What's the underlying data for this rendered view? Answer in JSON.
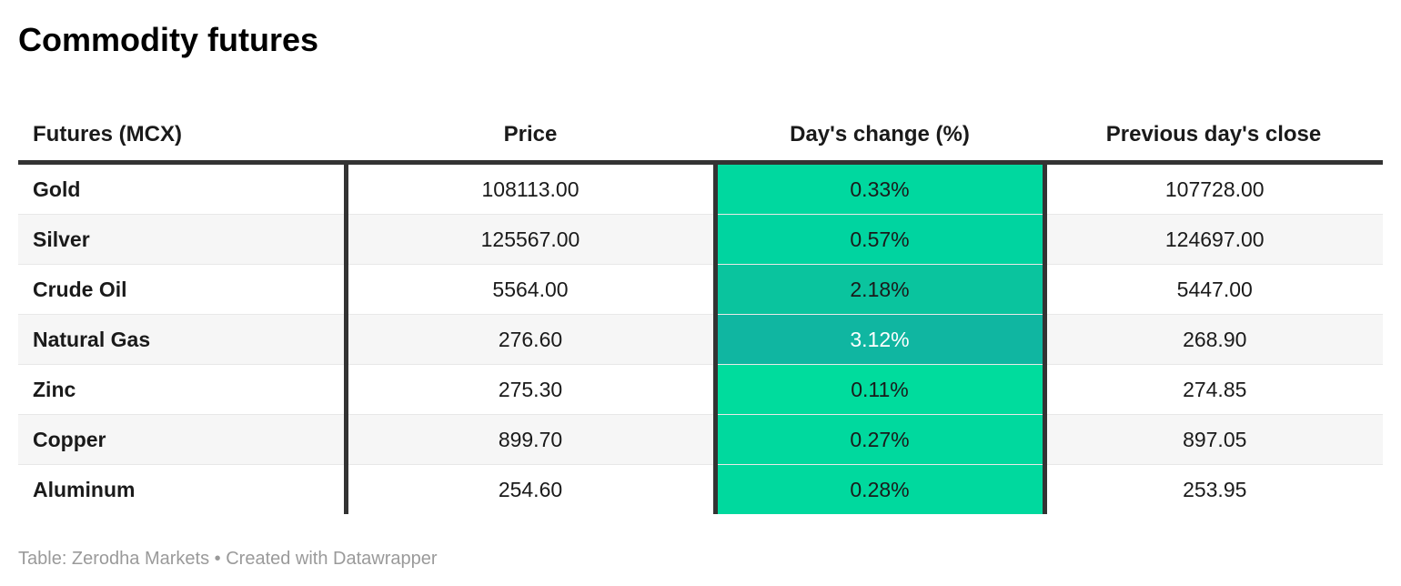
{
  "title": "Commodity futures",
  "table": {
    "columns": [
      {
        "label": "Futures (MCX)"
      },
      {
        "label": "Price"
      },
      {
        "label": "Day's change (%)"
      },
      {
        "label": "Previous day's close"
      }
    ],
    "rows": [
      {
        "future": "Gold",
        "price": "108113.00",
        "change": "0.33%",
        "change_bg": "#00d89f",
        "change_text_color": "#1a1a1a",
        "prev_close": "107728.00",
        "striped": false
      },
      {
        "future": "Silver",
        "price": "125567.00",
        "change": "0.57%",
        "change_bg": "#00d4a0",
        "change_text_color": "#1a1a1a",
        "prev_close": "124697.00",
        "striped": true
      },
      {
        "future": "Crude Oil",
        "price": "5564.00",
        "change": "2.18%",
        "change_bg": "#0ac49e",
        "change_text_color": "#1a1a1a",
        "prev_close": "5447.00",
        "striped": false
      },
      {
        "future": "Natural Gas",
        "price": "276.60",
        "change": "3.12%",
        "change_bg": "#10b6a1",
        "change_text_color": "#ffffff",
        "prev_close": "268.90",
        "striped": true
      },
      {
        "future": "Zinc",
        "price": "275.30",
        "change": "0.11%",
        "change_bg": "#00dc9d",
        "change_text_color": "#1a1a1a",
        "prev_close": "274.85",
        "striped": false
      },
      {
        "future": "Copper",
        "price": "899.70",
        "change": "0.27%",
        "change_bg": "#00d99e",
        "change_text_color": "#1a1a1a",
        "prev_close": "897.05",
        "striped": true
      },
      {
        "future": "Aluminum",
        "price": "254.60",
        "change": "0.28%",
        "change_bg": "#00d99e",
        "change_text_color": "#1a1a1a",
        "prev_close": "253.95",
        "striped": false
      }
    ]
  },
  "footer": {
    "text": "Table: Zerodha Markets • Created with Datawrapper"
  },
  "colors": {
    "header_border": "#333333",
    "column_divider": "#333333",
    "row_separator": "#e8e8e8",
    "stripe_bg": "#f6f6f6",
    "footer_text": "#9a9a9a",
    "heat_green_light": "#00dc9d",
    "heat_green_dark": "#10b6a1"
  },
  "chart_data": {
    "type": "table",
    "title": "Commodity futures",
    "columns": [
      "Futures (MCX)",
      "Price",
      "Day's change (%)",
      "Previous day's close"
    ],
    "rows": [
      [
        "Gold",
        108113.0,
        0.33,
        107728.0
      ],
      [
        "Silver",
        125567.0,
        0.57,
        124697.0
      ],
      [
        "Crude Oil",
        5564.0,
        2.18,
        5447.0
      ],
      [
        "Natural Gas",
        276.6,
        3.12,
        268.9
      ],
      [
        "Zinc",
        275.3,
        0.11,
        274.85
      ],
      [
        "Copper",
        899.7,
        0.27,
        897.05
      ],
      [
        "Aluminum",
        254.6,
        0.28,
        253.95
      ]
    ],
    "notes": "Day's change (%) column is heat-map shaded green; higher % = darker teal (3.12% cell uses white text). Source footer: Table: Zerodha Markets • Created with Datawrapper"
  }
}
